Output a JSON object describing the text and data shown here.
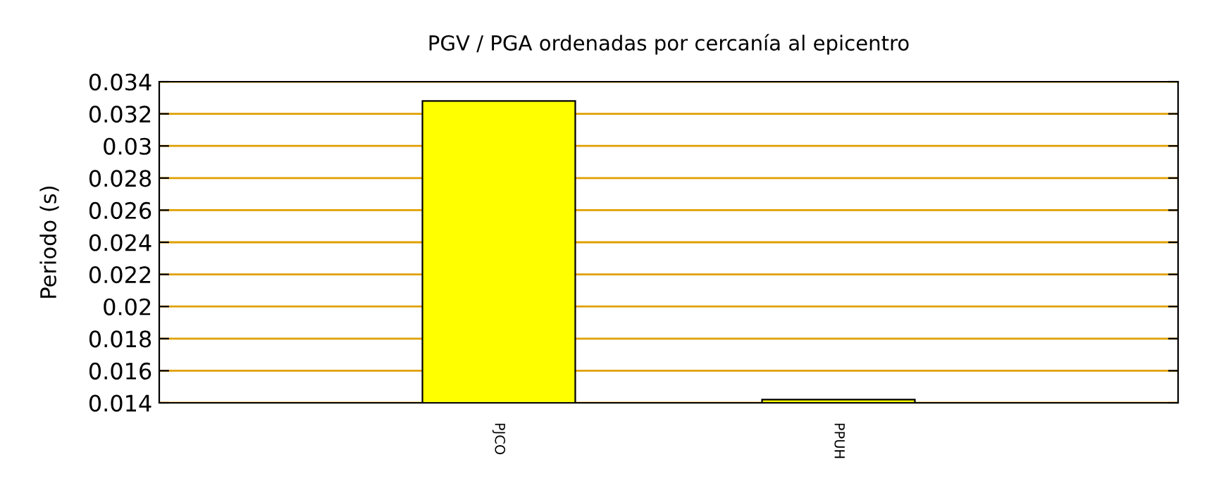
{
  "chart_data": {
    "type": "bar",
    "title": "PGV / PGA ordenadas por cercanía al epicentro",
    "ylabel": "Periodo (s)",
    "categories": [
      "PJCO",
      "PPUH"
    ],
    "values": [
      0.0328,
      0.0142
    ],
    "color": "#ffff00",
    "ylim": [
      0.014,
      0.034
    ],
    "yticks": [
      0.014,
      0.016,
      0.018,
      0.02,
      0.022,
      0.024,
      0.026,
      0.028,
      0.03,
      0.032,
      0.034
    ],
    "grid": "y"
  }
}
